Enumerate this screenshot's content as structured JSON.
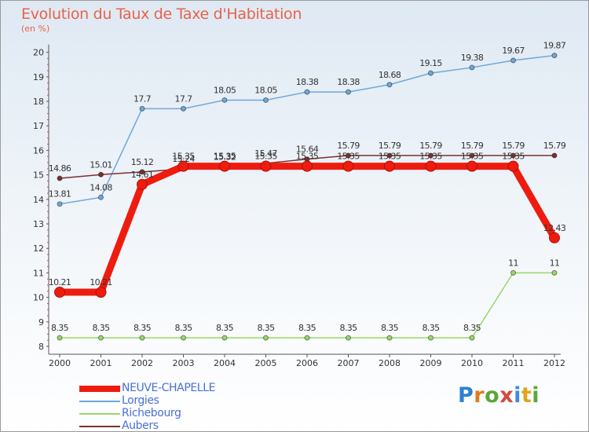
{
  "chart_data": {
    "type": "line",
    "title": "Evolution du Taux de Taxe d'Habitation",
    "subtitle": "(en %)",
    "x": [
      "2000",
      "2001",
      "2002",
      "2003",
      "2004",
      "2005",
      "2006",
      "2007",
      "2008",
      "2009",
      "2010",
      "2011",
      "2012"
    ],
    "ylim": [
      8,
      20
    ],
    "yticks": [
      "8",
      "9",
      "10",
      "11",
      "12",
      "13",
      "14",
      "15",
      "16",
      "17",
      "18",
      "19",
      "20"
    ],
    "grid": false,
    "legend_position": "bottom-left",
    "series": [
      {
        "name": "NEUVE-CHAPELLE",
        "color": "#ee1c0f",
        "values": [
          10.21,
          10.21,
          14.61,
          15.35,
          15.35,
          15.35,
          15.35,
          15.35,
          15.35,
          15.35,
          15.35,
          15.35,
          12.43
        ],
        "labels": [
          "10.21",
          "10.21",
          "14.61",
          "15.35",
          "15.35",
          "15.35",
          "15.35",
          "15.35",
          "15.35",
          "15.35",
          "15.35",
          "15.35",
          "12.43"
        ]
      },
      {
        "name": "Lorgies",
        "color": "#6fa8d8",
        "values": [
          13.81,
          14.08,
          17.7,
          17.7,
          18.05,
          18.05,
          18.38,
          18.38,
          18.68,
          19.15,
          19.38,
          19.67,
          19.87
        ],
        "labels": [
          "13.81",
          "14.08",
          "17.7",
          "17.7",
          "18.05",
          "18.05",
          "18.38",
          "18.38",
          "18.68",
          "19.15",
          "19.38",
          "19.67",
          "19.87"
        ]
      },
      {
        "name": "Richebourg",
        "color": "#9ad66a",
        "values": [
          8.35,
          8.35,
          8.35,
          8.35,
          8.35,
          8.35,
          8.35,
          8.35,
          8.35,
          8.35,
          8.35,
          11,
          11
        ],
        "labels": [
          "8.35",
          "8.35",
          "8.35",
          "8.35",
          "8.35",
          "8.35",
          "8.35",
          "8.35",
          "8.35",
          "8.35",
          "8.35",
          "11",
          "11"
        ]
      },
      {
        "name": "Aubers",
        "color": "#7a3030",
        "values": [
          14.86,
          15.01,
          15.12,
          15.24,
          15.32,
          15.47,
          15.64,
          15.79,
          15.79,
          15.79,
          15.79,
          15.79,
          15.79
        ],
        "labels": [
          "14.86",
          "15.01",
          "15.12",
          "15.24",
          "15.32",
          "15.47",
          "15.64",
          "15.79",
          "15.79",
          "15.79",
          "15.79",
          "15.79",
          "15.79"
        ]
      }
    ]
  },
  "logo": {
    "letters": [
      "P",
      "r",
      "o",
      "x",
      "i",
      "t",
      "i"
    ]
  }
}
